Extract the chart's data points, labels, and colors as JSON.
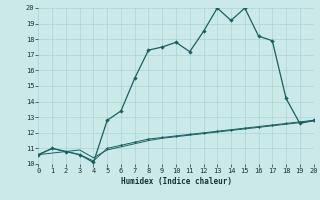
{
  "xlabel": "Humidex (Indice chaleur)",
  "xlim": [
    0,
    20
  ],
  "ylim": [
    10,
    20
  ],
  "xticks": [
    0,
    1,
    2,
    3,
    4,
    5,
    6,
    7,
    8,
    9,
    10,
    11,
    12,
    13,
    14,
    15,
    16,
    17,
    18,
    19,
    20
  ],
  "yticks": [
    10,
    11,
    12,
    13,
    14,
    15,
    16,
    17,
    18,
    19,
    20
  ],
  "bg_color": "#cce9e9",
  "grid_color": "#aad4d4",
  "line_color": "#1a6060",
  "curve1_x": [
    0,
    1,
    2,
    3,
    4,
    5,
    6,
    7,
    8,
    9,
    10,
    11,
    12,
    13,
    14,
    15,
    16,
    17,
    18,
    19,
    20
  ],
  "curve1_y": [
    10.6,
    11.0,
    10.8,
    10.6,
    10.1,
    12.8,
    13.4,
    15.5,
    17.3,
    17.5,
    17.8,
    17.2,
    18.5,
    20.0,
    19.2,
    20.0,
    18.2,
    17.9,
    14.2,
    12.6,
    12.8
  ],
  "curve2_x": [
    0,
    1,
    2,
    3,
    4,
    5,
    6,
    7,
    8,
    9,
    10,
    11,
    12,
    13,
    14,
    15,
    16,
    17,
    18,
    19,
    20
  ],
  "curve2_y": [
    10.6,
    11.0,
    10.8,
    10.6,
    10.2,
    11.0,
    11.2,
    11.4,
    11.6,
    11.7,
    11.8,
    11.9,
    12.0,
    12.1,
    12.2,
    12.3,
    12.4,
    12.5,
    12.6,
    12.7,
    12.8
  ],
  "curve3_x": [
    0,
    1,
    2,
    3,
    4,
    5,
    6,
    7,
    8,
    9,
    10,
    11,
    12,
    13,
    14,
    15,
    16,
    17,
    18,
    19,
    20
  ],
  "curve3_y": [
    10.6,
    10.7,
    10.8,
    10.9,
    10.4,
    10.9,
    11.1,
    11.3,
    11.5,
    11.65,
    11.75,
    11.85,
    11.95,
    12.05,
    12.15,
    12.25,
    12.35,
    12.45,
    12.55,
    12.65,
    12.75
  ],
  "label_fontsize": 5.5,
  "tick_fontsize": 5.0
}
